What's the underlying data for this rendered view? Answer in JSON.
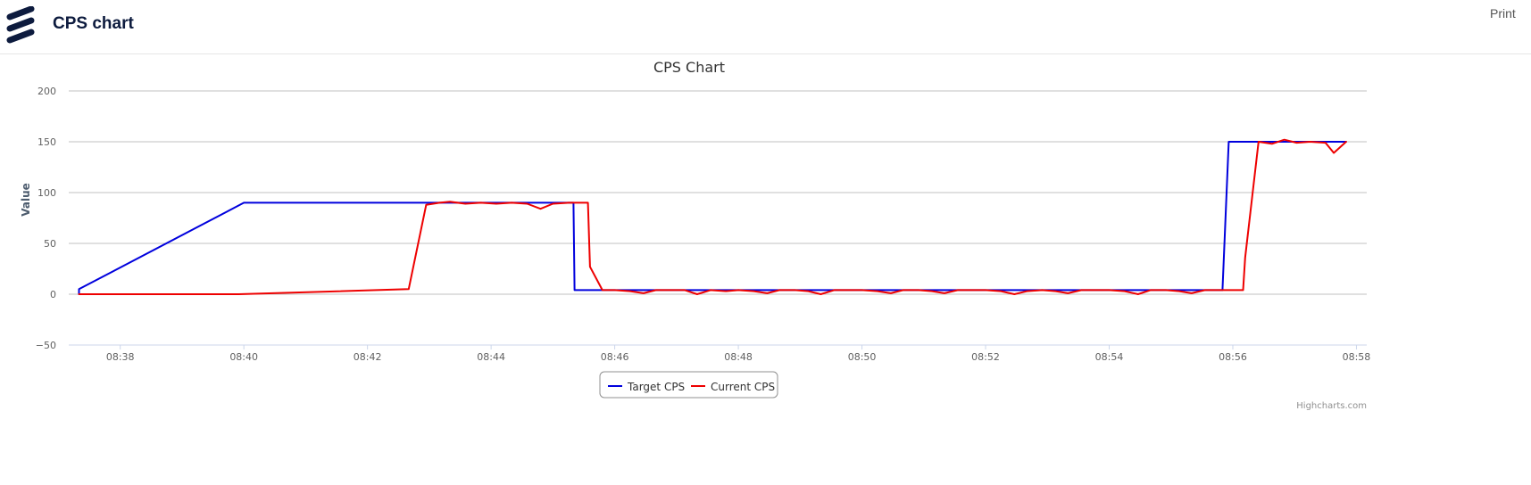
{
  "header": {
    "app_title": "CPS chart",
    "print_label": "Print",
    "logo_icon": "ericsson-logo-icon"
  },
  "chart_data": {
    "type": "line",
    "title": "CPS Chart",
    "xlabel": "",
    "ylabel": "Value",
    "ylim": [
      -50,
      200
    ],
    "yticks": [
      -50,
      0,
      50,
      100,
      150,
      200
    ],
    "xlim": [
      "08:37:10",
      "08:58:10"
    ],
    "xtick_labels": [
      "08:38",
      "08:40",
      "08:42",
      "08:44",
      "08:46",
      "08:48",
      "08:50",
      "08:52",
      "08:54",
      "08:56",
      "08:58"
    ],
    "grid": true,
    "legend_position": "bottom-center",
    "credits": "Highcharts.com",
    "series": [
      {
        "name": "Target CPS",
        "color": "#0000dd",
        "points": [
          [
            "08:37:20",
            0
          ],
          [
            "08:37:20",
            5
          ],
          [
            "08:40:00",
            90
          ],
          [
            "08:45:20",
            90
          ],
          [
            "08:45:21",
            4
          ],
          [
            "08:55:50",
            4
          ],
          [
            "08:55:56",
            150
          ],
          [
            "08:57:50",
            150
          ]
        ]
      },
      {
        "name": "Current CPS",
        "color": "#ee0000",
        "points": [
          [
            "08:37:20",
            0
          ],
          [
            "08:39:55",
            0
          ],
          [
            "08:42:40",
            5
          ],
          [
            "08:42:57",
            88
          ],
          [
            "08:43:10",
            90
          ],
          [
            "08:43:20",
            91
          ],
          [
            "08:43:35",
            89
          ],
          [
            "08:43:50",
            90
          ],
          [
            "08:44:05",
            89
          ],
          [
            "08:44:20",
            90
          ],
          [
            "08:44:35",
            89
          ],
          [
            "08:44:48",
            84
          ],
          [
            "08:45:00",
            89
          ],
          [
            "08:45:15",
            90
          ],
          [
            "08:45:34",
            90
          ],
          [
            "08:45:36",
            27
          ],
          [
            "08:45:48",
            4
          ],
          [
            "08:46:00",
            4
          ],
          [
            "08:46:15",
            3
          ],
          [
            "08:46:28",
            1
          ],
          [
            "08:46:40",
            4
          ],
          [
            "08:46:55",
            4
          ],
          [
            "08:47:08",
            4
          ],
          [
            "08:47:20",
            0
          ],
          [
            "08:47:33",
            4
          ],
          [
            "08:47:48",
            3
          ],
          [
            "08:48:00",
            4
          ],
          [
            "08:48:15",
            3
          ],
          [
            "08:48:28",
            1
          ],
          [
            "08:48:40",
            4
          ],
          [
            "08:48:55",
            4
          ],
          [
            "08:49:08",
            3
          ],
          [
            "08:49:20",
            0
          ],
          [
            "08:49:33",
            4
          ],
          [
            "08:49:48",
            4
          ],
          [
            "08:50:00",
            4
          ],
          [
            "08:50:15",
            3
          ],
          [
            "08:50:28",
            1
          ],
          [
            "08:50:40",
            4
          ],
          [
            "08:50:55",
            4
          ],
          [
            "08:51:08",
            3
          ],
          [
            "08:51:20",
            1
          ],
          [
            "08:51:33",
            4
          ],
          [
            "08:51:48",
            4
          ],
          [
            "08:52:00",
            4
          ],
          [
            "08:52:15",
            3
          ],
          [
            "08:52:28",
            0
          ],
          [
            "08:52:40",
            3
          ],
          [
            "08:52:55",
            4
          ],
          [
            "08:53:08",
            3
          ],
          [
            "08:53:20",
            1
          ],
          [
            "08:53:33",
            4
          ],
          [
            "08:53:48",
            4
          ],
          [
            "08:54:00",
            4
          ],
          [
            "08:54:15",
            3
          ],
          [
            "08:54:28",
            0
          ],
          [
            "08:54:40",
            4
          ],
          [
            "08:54:55",
            4
          ],
          [
            "08:55:08",
            3
          ],
          [
            "08:55:20",
            1
          ],
          [
            "08:55:33",
            4
          ],
          [
            "08:55:48",
            4
          ],
          [
            "08:56:00",
            4
          ],
          [
            "08:56:10",
            4
          ],
          [
            "08:56:12",
            36
          ],
          [
            "08:56:25",
            150
          ],
          [
            "08:56:38",
            148
          ],
          [
            "08:56:50",
            152
          ],
          [
            "08:57:02",
            149
          ],
          [
            "08:57:15",
            150
          ],
          [
            "08:57:30",
            149
          ],
          [
            "08:57:38",
            139
          ],
          [
            "08:57:50",
            150
          ]
        ]
      }
    ]
  }
}
